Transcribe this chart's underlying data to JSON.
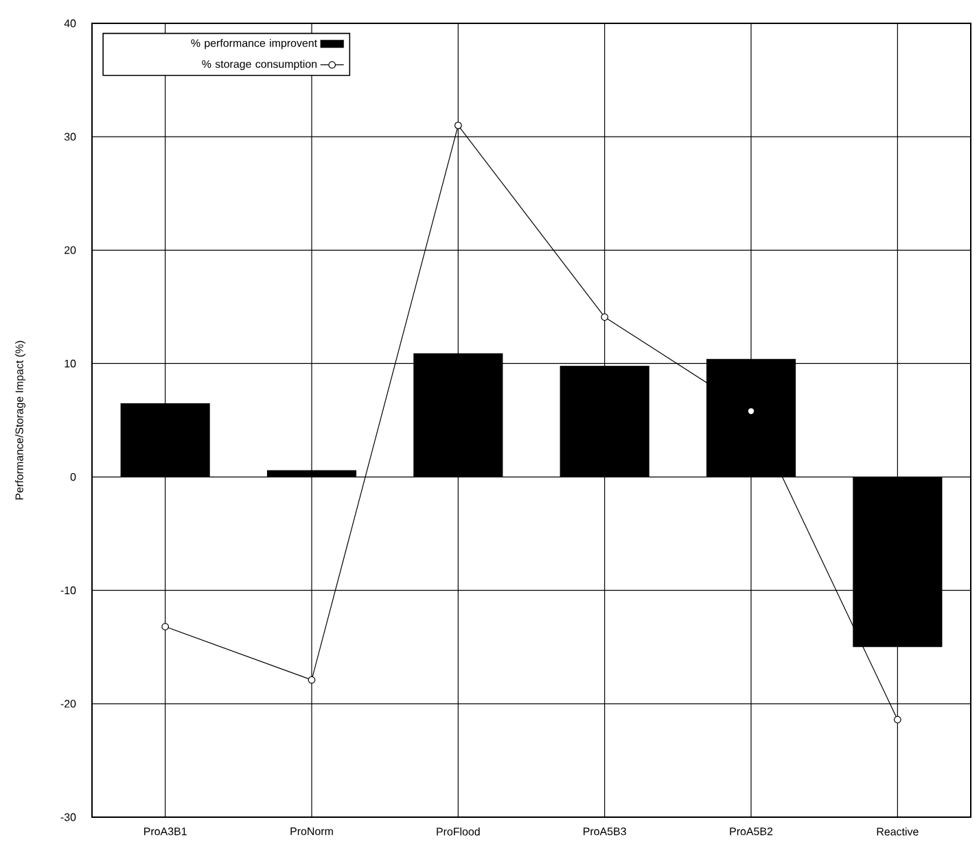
{
  "chart_data": {
    "type": "bar",
    "ylabel": "Performance/Storage Impact (%)",
    "categories": [
      "ProA3B1",
      "ProNorm",
      "ProFlood",
      "ProA5B3",
      "ProA5B2",
      "Reactive"
    ],
    "series": [
      {
        "name": "% performance improvent",
        "color": "#000000",
        "values": [
          6.5,
          0.6,
          10.9,
          9.8,
          10.4,
          -15.0
        ]
      },
      {
        "name": "% storage consumption",
        "type": "line",
        "color": "#000000",
        "marker": "circle",
        "line_style": "solid",
        "values": [
          -13.2,
          -17.9,
          31.0,
          14.1,
          5.8,
          -21.4
        ]
      }
    ],
    "ylim": [
      -30,
      40
    ],
    "yticks": [
      -30,
      -20,
      -10,
      0,
      10,
      20,
      30,
      40
    ],
    "grid": true,
    "legend": "top left"
  }
}
